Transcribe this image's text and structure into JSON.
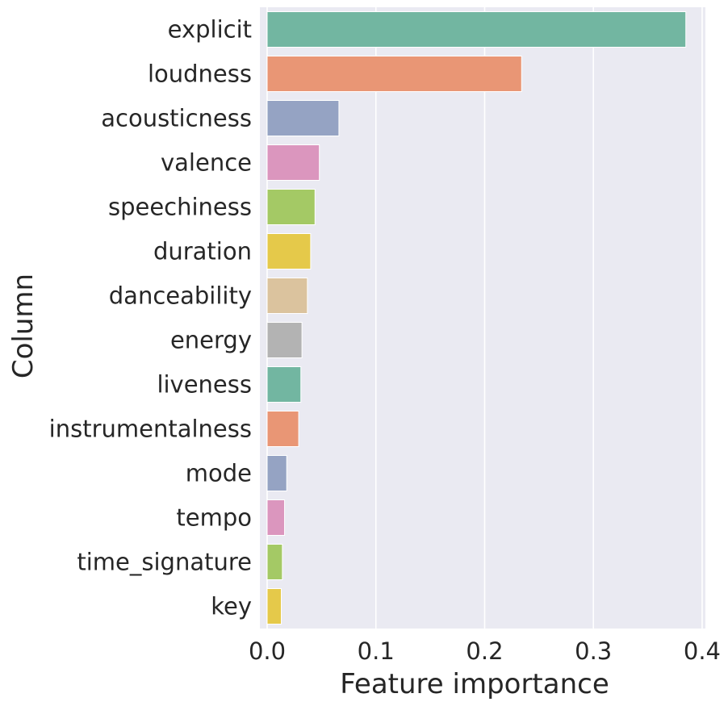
{
  "chart_data": {
    "type": "bar",
    "orientation": "horizontal",
    "categories": [
      "explicit",
      "loudness",
      "acousticness",
      "valence",
      "speechiness",
      "duration",
      "danceability",
      "energy",
      "liveness",
      "instrumentalness",
      "mode",
      "tempo",
      "time_signature",
      "key"
    ],
    "values": [
      0.385,
      0.234,
      0.066,
      0.048,
      0.044,
      0.04,
      0.037,
      0.032,
      0.031,
      0.029,
      0.018,
      0.016,
      0.014,
      0.013
    ],
    "title": "",
    "xlabel": "Feature importance",
    "ylabel": "Column",
    "xlim": [
      0,
      0.403
    ],
    "xticks": [
      0.0,
      0.1,
      0.2,
      0.3,
      0.4
    ],
    "xtick_labels": [
      "0.0",
      "0.1",
      "0.2",
      "0.3",
      "0.4"
    ],
    "grid": true,
    "legend": "none",
    "colors": [
      "#72b6a1",
      "#e99675",
      "#95a3c3",
      "#db96be",
      "#a4c965",
      "#e5c94a",
      "#dbc39e",
      "#b3b3b3"
    ],
    "background": "#eaeaf2",
    "grid_color": "#ffffff"
  }
}
